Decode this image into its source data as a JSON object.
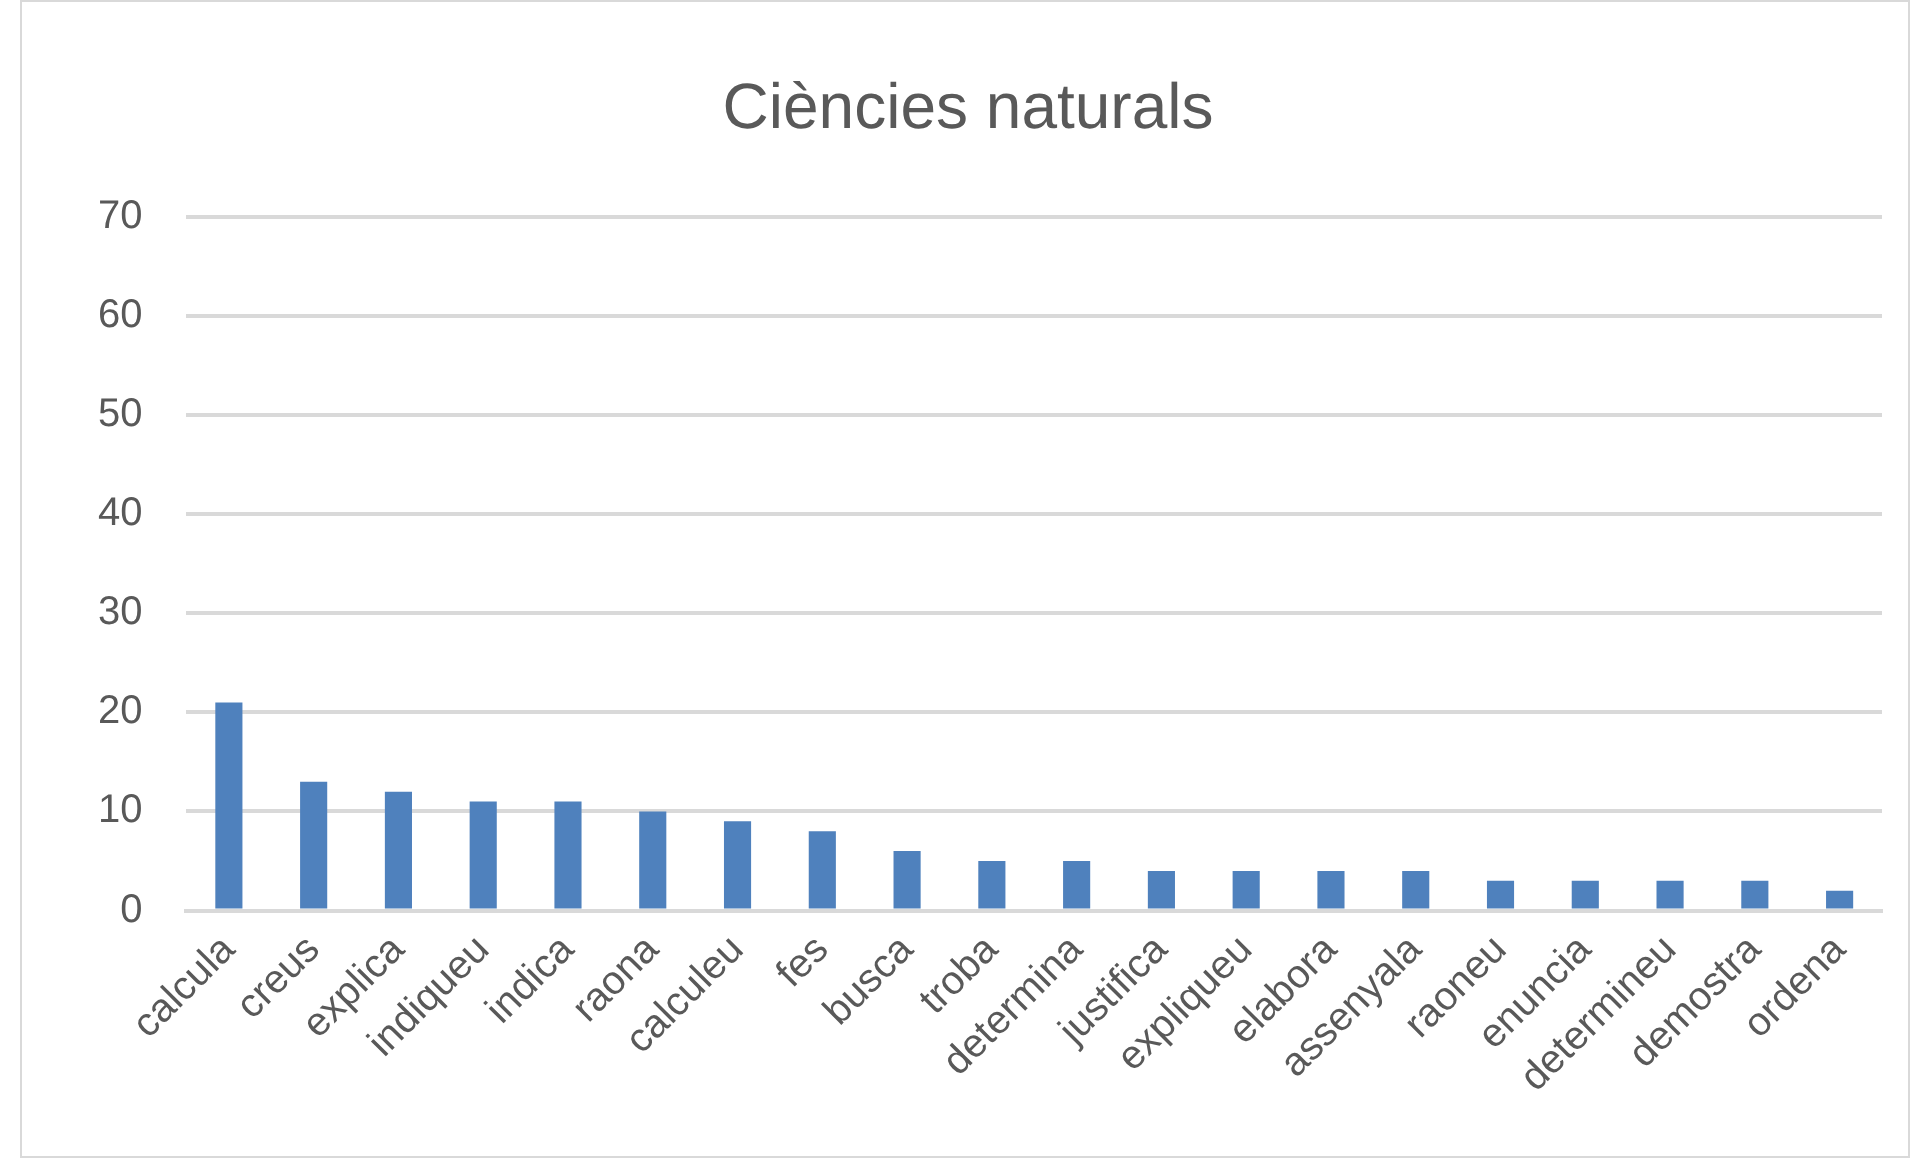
{
  "chart_data": {
    "type": "bar",
    "title": "Ciències naturals",
    "categories": [
      "calcula",
      "creus",
      "explica",
      "indiqueu",
      "indica",
      "raona",
      "calculeu",
      "fes",
      "busca",
      "troba",
      "determina",
      "justifica",
      "expliqueu",
      "elabora",
      "assenyala",
      "raoneu",
      "enuncia",
      "determineu",
      "demostra",
      "ordena"
    ],
    "values": [
      21,
      13,
      12,
      11,
      11,
      10,
      9,
      8,
      6,
      5,
      5,
      4,
      4,
      4,
      4,
      3,
      3,
      3,
      3,
      2
    ],
    "color": "#4f81bd",
    "ylim": [
      0,
      70
    ],
    "yticks": [
      0,
      10,
      20,
      30,
      40,
      50,
      60,
      70
    ],
    "grid": "y",
    "legend": false
  }
}
